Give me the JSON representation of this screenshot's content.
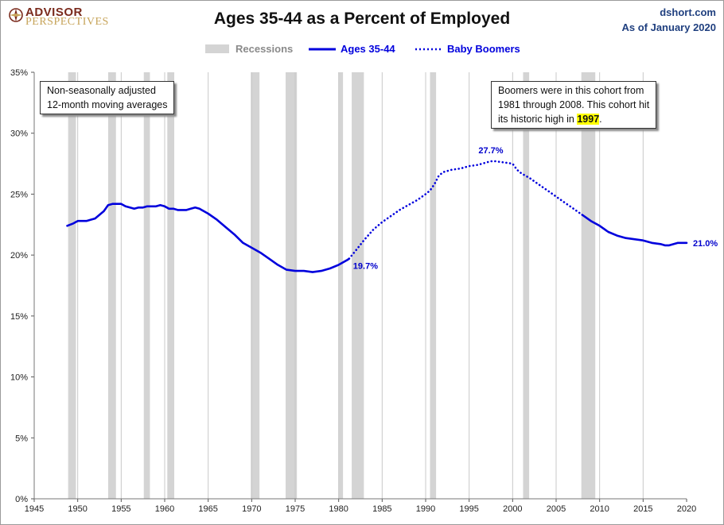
{
  "header": {
    "logo_line1": "ADVISOR",
    "logo_line2": "PERSPECTIVES",
    "title": "Ages 35-44 as a Percent of Employed",
    "source_line1": "dshort.com",
    "source_line2": "As of January 2020"
  },
  "legend": {
    "recessions": "Recessions",
    "ages": "Ages 35-44",
    "boomers": "Baby Boomers"
  },
  "notes": {
    "left_line1": "Non-seasonally adjusted",
    "left_line2": "12-month moving averages",
    "right_line1": "Boomers were in this cohort from",
    "right_line2": "1981  through 2008.  This cohort hit",
    "right_line3_pre": "its historic high in ",
    "right_line3_highlight": "1997",
    "right_line3_post": "."
  },
  "colors": {
    "series": "#0000dd",
    "recession": "#d4d4d4",
    "grid": "#c8c8c8",
    "label": "#0000cc",
    "source": "#1f3f7f"
  },
  "chart_data": {
    "type": "line",
    "title": "Ages 35-44 as a Percent of Employed",
    "xlim": [
      1945,
      2020
    ],
    "ylim": [
      0,
      35
    ],
    "x_ticks": [
      "1945",
      "1950",
      "1955",
      "1960",
      "1965",
      "1970",
      "1975",
      "1980",
      "1985",
      "1990",
      "1995",
      "2000",
      "2005",
      "2010",
      "2015",
      "2020"
    ],
    "y_ticks": [
      "0%",
      "5%",
      "10%",
      "15%",
      "20%",
      "25%",
      "30%",
      "35%"
    ],
    "grid": "vertical lines only",
    "recessions": [
      [
        1948.9,
        1949.8
      ],
      [
        1953.5,
        1954.4
      ],
      [
        1957.6,
        1958.3
      ],
      [
        1960.3,
        1961.1
      ],
      [
        1969.9,
        1970.9
      ],
      [
        1973.9,
        1975.2
      ],
      [
        1980.0,
        1980.5
      ],
      [
        1981.5,
        1982.9
      ],
      [
        1990.5,
        1991.2
      ],
      [
        2001.2,
        2001.9
      ],
      [
        2007.9,
        2009.5
      ]
    ],
    "series": [
      {
        "name": "Ages 35-44",
        "style": "solid",
        "x": [
          1948.8,
          1949.5,
          1950.0,
          1950.5,
          1951.0,
          1951.5,
          1952.0,
          1952.5,
          1953.0,
          1953.5,
          1954.0,
          1954.5,
          1955.0,
          1955.5,
          1956.0,
          1956.5,
          1957.0,
          1957.5,
          1958.0,
          1958.5,
          1959.0,
          1959.5,
          1960.0,
          1960.5,
          1961.0,
          1961.5,
          1962.0,
          1962.5,
          1963.0,
          1963.5,
          1964.0,
          1965.0,
          1966.0,
          1967.0,
          1968.0,
          1969.0,
          1970.0,
          1971.0,
          1972.0,
          1973.0,
          1974.0,
          1975.0,
          1976.0,
          1977.0,
          1978.0,
          1979.0,
          1980.0,
          1981.0,
          1981.2
        ],
        "y": [
          22.4,
          22.6,
          22.8,
          22.8,
          22.8,
          22.9,
          23.0,
          23.3,
          23.6,
          24.1,
          24.2,
          24.2,
          24.2,
          24.0,
          23.9,
          23.8,
          23.9,
          23.9,
          24.0,
          24.0,
          24.0,
          24.1,
          24.0,
          23.8,
          23.8,
          23.7,
          23.7,
          23.7,
          23.8,
          23.9,
          23.8,
          23.4,
          22.9,
          22.3,
          21.7,
          21.0,
          20.6,
          20.2,
          19.7,
          19.2,
          18.8,
          18.7,
          18.7,
          18.6,
          18.7,
          18.9,
          19.2,
          19.6,
          19.7
        ]
      },
      {
        "name": "Baby Boomers",
        "style": "dotted",
        "x": [
          1981.2,
          1982.0,
          1983.0,
          1984.0,
          1985.0,
          1986.0,
          1987.0,
          1988.0,
          1989.0,
          1990.0,
          1990.5,
          1991.0,
          1991.5,
          1992.0,
          1993.0,
          1994.0,
          1995.0,
          1996.0,
          1997.0,
          1997.5,
          1998.0,
          1999.0,
          2000.0,
          2000.5,
          2001.0,
          2002.0,
          2003.0,
          2004.0,
          2005.0,
          2006.0,
          2007.0,
          2008.0
        ],
        "y": [
          19.7,
          20.4,
          21.3,
          22.1,
          22.7,
          23.2,
          23.7,
          24.1,
          24.5,
          25.0,
          25.3,
          25.8,
          26.5,
          26.8,
          27.0,
          27.1,
          27.3,
          27.4,
          27.6,
          27.7,
          27.7,
          27.6,
          27.5,
          27.0,
          26.7,
          26.3,
          25.8,
          25.3,
          24.8,
          24.3,
          23.8,
          23.3
        ]
      },
      {
        "name": "",
        "style": "solid",
        "x": [
          2008.0,
          2009.0,
          2010.0,
          2011.0,
          2012.0,
          2013.0,
          2014.0,
          2015.0,
          2016.0,
          2017.0,
          2017.5,
          2018.0,
          2019.0,
          2020.0
        ],
        "y": [
          23.3,
          22.8,
          22.4,
          21.9,
          21.6,
          21.4,
          21.3,
          21.2,
          21.0,
          20.9,
          20.8,
          20.8,
          21.0,
          21.0
        ]
      }
    ],
    "annotations": [
      {
        "text": "19.7%",
        "x": 1981.2,
        "y": 19.7
      },
      {
        "text": "27.7%",
        "x": 1997.5,
        "y": 27.7
      },
      {
        "text": "21.0%",
        "x": 2020.0,
        "y": 21.0
      }
    ]
  }
}
